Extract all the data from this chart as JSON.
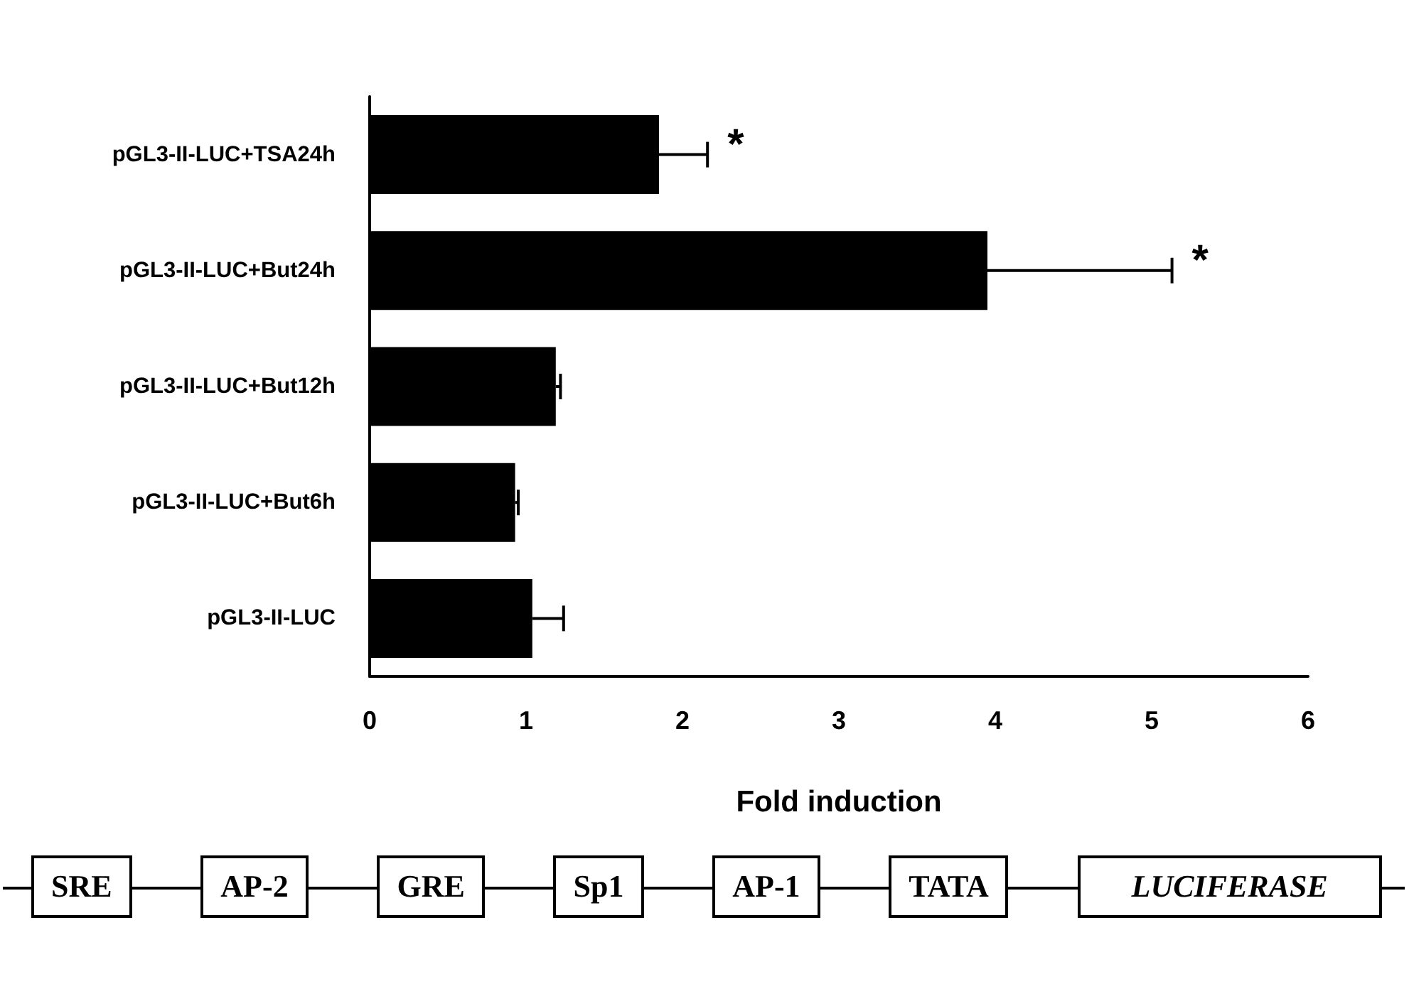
{
  "chart_data": {
    "type": "bar",
    "orientation": "horizontal",
    "xlabel": "Fold induction",
    "categories": [
      "pGL3-II-LUC+TSA24h",
      "pGL3-II-LUC+But24h",
      "pGL3-II-LUC+But12h",
      "pGL3-II-LUC+But6h",
      "pGL3-II-LUC"
    ],
    "values": [
      1.85,
      3.95,
      1.19,
      0.93,
      1.04
    ],
    "errors": [
      [
        1.85,
        2.16
      ],
      [
        3.95,
        5.13
      ],
      [
        1.19,
        1.22
      ],
      [
        0.93,
        0.95
      ],
      [
        1.04,
        1.24
      ]
    ],
    "color": "#000000",
    "xlim": [
      0,
      6
    ],
    "xticks": [
      0,
      1,
      2,
      3,
      4,
      5,
      6
    ],
    "grid": false,
    "annotations": [
      {
        "text": "*",
        "x": 2.16,
        "y": "pGL3-II-LUC+TSA24h"
      },
      {
        "text": "*",
        "x": 5.13,
        "y": "pGL3-II-LUC+But24h"
      },
      "SRE",
      "AP-2",
      "GRE",
      "Sp1",
      "AP-1",
      "TATA",
      "LUCIFERASE"
    ]
  }
}
